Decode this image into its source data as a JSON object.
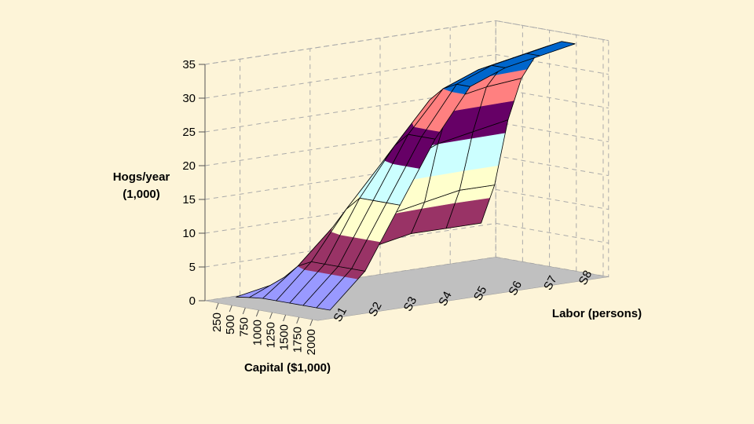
{
  "chart_data": {
    "type": "surface",
    "title": "",
    "zlabel_line1": "Hogs/year",
    "zlabel_line2": "(1,000)",
    "xlabel": "Capital ($1,000)",
    "ylabel": "Labor (persons)",
    "z_ticks": [
      "0",
      "5",
      "10",
      "15",
      "20",
      "25",
      "30",
      "35"
    ],
    "zlim": [
      0,
      35
    ],
    "x_ticks": [
      "250",
      "500",
      "750",
      "1000",
      "1250",
      "1500",
      "1750",
      "2000"
    ],
    "y_tick_labels": [
      "S1",
      "S2",
      "S3",
      "S4",
      "S5",
      "S6",
      "S7",
      "S8"
    ],
    "band_size": 5,
    "band_colors": [
      "#9999ff",
      "#993366",
      "#ffffcc",
      "#ccffff",
      "#660066",
      "#ff8080",
      "#0066cc"
    ],
    "floor_color": "#c0c0c0",
    "x": [
      250,
      500,
      750,
      1000,
      1250,
      1500,
      1750,
      2000
    ],
    "y": [
      "S1",
      "S2",
      "S3",
      "S4",
      "S5",
      "S6",
      "S7",
      "S8"
    ],
    "z": [
      [
        0.5,
        0.8,
        1.0,
        1.0,
        1.0,
        1.0,
        1.0,
        1.0
      ],
      [
        1.5,
        3.0,
        5.0,
        6.0,
        6.0,
        6.0,
        6.0,
        6.0
      ],
      [
        3.0,
        6.0,
        10.0,
        13.0,
        15.0,
        15.0,
        15.0,
        15.0
      ],
      [
        4.0,
        8.0,
        14.0,
        19.0,
        22.0,
        24.0,
        24.0,
        24.0
      ],
      [
        5.0,
        10.0,
        18.0,
        24.0,
        28.0,
        30.0,
        31.0,
        31.0
      ],
      [
        6.0,
        11.0,
        20.0,
        27.0,
        30.0,
        32.0,
        33.0,
        33.0
      ],
      [
        6.0,
        12.0,
        21.0,
        28.0,
        31.0,
        33.0,
        34.0,
        34.0
      ],
      [
        6.0,
        12.0,
        22.0,
        28.5,
        32.0,
        34.0,
        35.0,
        35.0
      ]
    ]
  }
}
